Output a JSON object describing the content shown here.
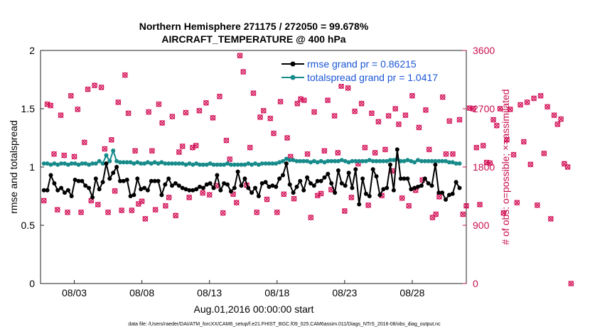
{
  "chart_data": {
    "type": "line",
    "title": "Northern Hemisphere 271175 / 272050 = 99.678%",
    "subtitle": "AIRCRAFT_TEMPERATURE @ 400 hPa",
    "xlabel": "Aug.01,2016 00:00:00 start",
    "ylabel": "rmse and totalspread",
    "ylabel_right": "# of obs: o=possible; ×=assimilated",
    "footnote": "data file: /Users/raeder/DAI/ATM_forcXX/CAM6_setup/f.e21.FHIST_BGC.f09_025.CAM6assim.011/Diags_NTrS_2016-08/obs_diag_output.nc",
    "x_range_days": [
      0.5,
      32.0
    ],
    "ylim": [
      0,
      2
    ],
    "ylim_right": [
      0,
      3600
    ],
    "x_ticks": [
      {
        "day": 3,
        "label": "08/03"
      },
      {
        "day": 8,
        "label": "08/08"
      },
      {
        "day": 13,
        "label": "08/13"
      },
      {
        "day": 18,
        "label": "08/18"
      },
      {
        "day": 23,
        "label": "08/23"
      },
      {
        "day": 28,
        "label": "08/28"
      }
    ],
    "y_ticks": [
      "0",
      "0.5",
      "1",
      "1.5",
      "2"
    ],
    "y_ticks_right": [
      "0",
      "900",
      "1800",
      "2700",
      "3600"
    ],
    "legend_position": "top-right",
    "grid": false,
    "colors": {
      "rmse": "#000000",
      "totalspread": "#178a8a",
      "obs": "#d4145a"
    },
    "series": [
      {
        "name": "rmse grand pr = 0.86215",
        "color": "#000000",
        "values": [
          0.8,
          0.8,
          0.93,
          0.86,
          0.8,
          0.82,
          0.78,
          0.8,
          0.75,
          0.89,
          0.88,
          0.88,
          0.84,
          0.82,
          0.74,
          0.9,
          0.81,
          0.87,
          1.03,
          0.9,
          0.95,
          1.0,
          0.88,
          0.88,
          0.89,
          0.75,
          0.76,
          0.9,
          0.81,
          0.82,
          0.8,
          0.88,
          0.88,
          0.88,
          0.76,
          0.85,
          0.9,
          0.84,
          0.86,
          0.84,
          0.82,
          0.81,
          0.8,
          0.8,
          0.81,
          0.83,
          0.82,
          0.85,
          0.86,
          0.82,
          0.93,
          0.8,
          0.86,
          0.85,
          0.79,
          0.82,
          0.96,
          0.84,
          0.9,
          0.82,
          0.78,
          0.82,
          0.75,
          0.86,
          0.87,
          0.83,
          0.84,
          0.83,
          0.9,
          0.93,
          1.03,
          0.85,
          0.78,
          0.83,
          0.88,
          0.8,
          0.91,
          0.86,
          0.84,
          0.88,
          0.88,
          0.91,
          0.94,
          0.86,
          0.78,
          0.97,
          0.86,
          0.84,
          0.95,
          0.82,
          0.98,
          0.68,
          0.9,
          0.77,
          0.75,
          0.98,
          0.92,
          0.76,
          0.81,
          0.82,
          1.02,
          0.8,
          1.15,
          0.9,
          0.9,
          0.9,
          0.81,
          0.82,
          0.83,
          0.84,
          0.9,
          0.86,
          0.84,
          1.02,
          0.78,
          0.78,
          0.72,
          0.76,
          0.77,
          0.87,
          0.82
        ]
      },
      {
        "name": "totalspread grand pr = 1.0417",
        "color": "#178a8a",
        "values": [
          1.03,
          1.03,
          1.02,
          1.03,
          1.02,
          1.03,
          1.03,
          1.02,
          1.03,
          1.03,
          1.02,
          1.03,
          1.03,
          1.02,
          1.03,
          1.03,
          1.05,
          1.03,
          1.1,
          1.05,
          1.14,
          1.05,
          1.04,
          1.04,
          1.04,
          1.04,
          1.03,
          1.04,
          1.03,
          1.03,
          1.04,
          1.03,
          1.04,
          1.03,
          1.04,
          1.03,
          1.03,
          1.03,
          1.03,
          1.03,
          1.03,
          1.02,
          1.03,
          1.02,
          1.03,
          1.02,
          1.02,
          1.02,
          1.03,
          1.02,
          1.02,
          1.02,
          1.02,
          1.03,
          1.02,
          1.02,
          1.02,
          1.02,
          1.02,
          1.03,
          1.02,
          1.03,
          1.02,
          1.03,
          1.03,
          1.03,
          1.03,
          1.03,
          1.04,
          1.05,
          1.07,
          1.06,
          1.06,
          1.05,
          1.05,
          1.05,
          1.05,
          1.04,
          1.05,
          1.04,
          1.05,
          1.04,
          1.05,
          1.05,
          1.05,
          1.05,
          1.06,
          1.05,
          1.04,
          1.05,
          1.05,
          1.05,
          1.05,
          1.05,
          1.06,
          1.05,
          1.05,
          1.05,
          1.05,
          1.05,
          1.06,
          1.06,
          1.07,
          1.05,
          1.05,
          1.06,
          1.05,
          1.04,
          1.06,
          1.05,
          1.05,
          1.05,
          1.05,
          1.05,
          1.05,
          1.05,
          1.05,
          1.04,
          1.04,
          1.03,
          1.03
        ]
      },
      {
        "name": "obs_count",
        "color": "#d4145a",
        "values": [
          1280,
          2770,
          2750,
          2000,
          1140,
          2600,
          1980,
          1100,
          2900,
          1960,
          2690,
          1100,
          2180,
          3000,
          1280,
          3060,
          1220,
          3030,
          2080,
          1100,
          2220,
          1430,
          2800,
          1130,
          3220,
          2630,
          1130,
          2050,
          1230,
          1270,
          1000,
          2650,
          2050,
          1140,
          2770,
          2480,
          1200,
          1330,
          2580,
          1050,
          2030,
          2120,
          2640,
          1330,
          2100,
          2130,
          2670,
          1400,
          2790,
          1370,
          2560,
          1510,
          2890,
          1090,
          2210,
          1920,
          1380,
          1250,
          3520,
          3270,
          1520,
          2100,
          2940,
          1100,
          2570,
          2670,
          1300,
          2550,
          2320,
          1100,
          2810,
          1380,
          2250,
          1960,
          1310,
          2780,
          2850,
          2830,
          2000,
          1020,
          2650,
          1360,
          1390,
          2050,
          2830,
          1450,
          2590,
          2020,
          3050,
          1120,
          3020,
          1330,
          2660,
          1850,
          2780,
          2100,
          1210,
          2630,
          2020,
          2500,
          1360,
          2070,
          2590,
          1740,
          2700,
          2460,
          1320,
          2600,
          1200,
          2900,
          1440,
          2410,
          1600,
          2680,
          2070,
          1020,
          1070,
          1340,
          2880,
          2000,
          2510,
          2000,
          3150,
          2530,
          1070,
          1200,
          2710,
          2700,
          2100,
          1220,
          2130,
          1870,
          1860,
          2530,
          2440,
          2700,
          1090,
          2220,
          2690,
          1990,
          1250,
          2760,
          2190,
          2800,
          1840,
          2860,
          1210,
          2900,
          2010,
          2730,
          1000,
          2600,
          2460,
          2540,
          1850,
          1800,
          0
        ]
      }
    ]
  }
}
